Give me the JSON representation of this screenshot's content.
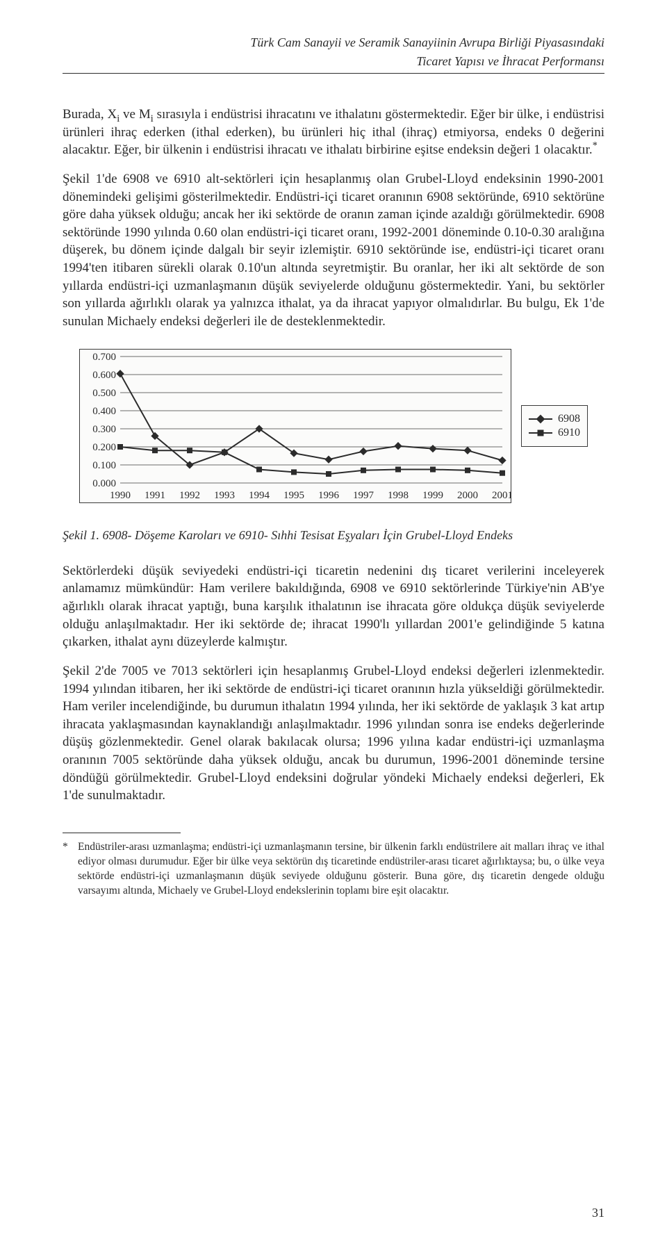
{
  "running_head": {
    "line1": "Türk Cam Sanayii ve Seramik Sanayiinin Avrupa Birliği Piyasasındaki",
    "line2": "Ticaret Yapısı ve İhracat Performansı"
  },
  "paragraphs": {
    "p1_a": "Burada, X",
    "p1_sub1": "i",
    "p1_b": " ve M",
    "p1_sub2": "i",
    "p1_c": " sırasıyla i endüstrisi ihracatını ve ithalatını göstermektedir. Eğer bir ülke, i endüstrisi ürünleri ihraç ederken (ithal ederken), bu ürünleri hiç ithal (ihraç) etmiyorsa, endeks 0 değerini alacaktır. Eğer, bir ülkenin i endüstrisi ihracatı ve ithalatı birbirine eşitse endeksin değeri 1 olacaktır.",
    "p1_sup": "*",
    "p2": "Şekil 1'de 6908 ve 6910 alt-sektörleri için hesaplanmış olan Grubel-Lloyd endeksinin 1990-2001 dönemindeki gelişimi gösterilmektedir. Endüstri-içi ticaret oranının 6908 sektöründe, 6910 sektörüne göre daha yüksek olduğu; ancak her iki sektörde de oranın zaman içinde azaldığı görülmektedir. 6908 sektöründe 1990 yılında 0.60 olan endüstri-içi ticaret oranı, 1992-2001 döneminde 0.10-0.30 aralığına düşerek, bu dönem içinde dalgalı bir seyir izlemiştir. 6910 sektöründe ise, endüstri-içi ticaret oranı 1994'ten itibaren sürekli olarak 0.10'un altında seyretmiştir. Bu oranlar, her iki alt sektörde de son yıllarda endüstri-içi uzmanlaşmanın düşük seviyelerde olduğunu göstermektedir. Yani, bu sektörler son yıllarda ağırlıklı olarak ya yalnızca ithalat, ya da ihracat yapıyor olmalıdırlar. Bu bulgu, Ek 1'de sunulan Michaely endeksi değerleri ile de desteklenmektedir.",
    "p3": "Sektörlerdeki düşük seviyedeki endüstri-içi ticaretin nedenini dış ticaret verilerini inceleyerek anlamamız mümkündür: Ham verilere bakıldığında, 6908 ve 6910 sektörlerinde Türkiye'nin AB'ye ağırlıklı olarak ihracat yaptığı, buna karşılık ithalatının ise ihracata göre oldukça düşük seviyelerde olduğu anlaşılmaktadır. Her iki sektörde de; ihracat 1990'lı yıllardan 2001'e gelindiğinde 5 katına çıkarken, ithalat aynı düzeylerde kalmıştır.",
    "p4": "Şekil 2'de 7005 ve 7013 sektörleri için hesaplanmış Grubel-Lloyd endeksi değerleri izlenmektedir. 1994 yılından itibaren, her iki sektörde de endüstri-içi ticaret oranının hızla yükseldiği görülmektedir. Ham veriler incelendiğinde, bu durumun ithalatın 1994 yılında, her iki sektörde de yaklaşık 3 kat artıp ihracata yaklaşmasından kaynaklandığı anlaşılmaktadır. 1996 yılından sonra ise endeks değerlerinde düşüş gözlenmektedir. Genel olarak bakılacak olursa; 1996 yılına kadar endüstri-içi uzmanlaşma oranının 7005 sektöründe daha yüksek olduğu, ancak bu durumun, 1996-2001 döneminde tersine döndüğü görülmektedir. Grubel-Lloyd endeksini doğrular yöndeki Michaely endeksi değerleri, Ek 1'de sunulmaktadır."
  },
  "caption": "Şekil 1. 6908- Döşeme Karoları ve 6910- Sıhhi Tesisat Eşyaları İçin Grubel-Lloyd Endeks",
  "legend": {
    "s1": "6908",
    "s2": "6910"
  },
  "footnote": {
    "mark": "*",
    "text": "Endüstriler-arası uzmanlaşma; endüstri-içi uzmanlaşmanın tersine, bir ülkenin farklı endüstrilere ait malları ihraç ve ithal ediyor olması durumudur. Eğer bir ülke veya sektörün dış ticaretinde endüstriler-arası ticaret ağırlıktaysa; bu, o ülke veya sektörde endüstri-içi uzmanlaşmanın düşük seviyede olduğunu gösterir. Buna göre, dış ticaretin dengede olduğu varsayımı altında, Michaely ve Grubel-Lloyd endekslerinin toplamı bire eşit olacaktır."
  },
  "page_number": "31",
  "chart": {
    "type": "line",
    "background_color": "#fbfbfa",
    "grid_color": "#6b6b6b",
    "line_color": "#2b2b2b",
    "text_color": "#2b2b2b",
    "label_fontsize": 15,
    "marker_size": 8,
    "line_width": 2,
    "x_labels": [
      "1990",
      "1991",
      "1992",
      "1993",
      "1994",
      "1995",
      "1996",
      "1997",
      "1998",
      "1999",
      "2000",
      "2001"
    ],
    "y_labels": [
      "0.000",
      "0.100",
      "0.200",
      "0.300",
      "0.400",
      "0.500",
      "0.600",
      "0.700"
    ],
    "ylim": [
      0.0,
      0.7
    ],
    "ytick_step": 0.1,
    "series": [
      {
        "name": "6908",
        "marker": "diamond",
        "values": [
          0.605,
          0.26,
          0.1,
          0.17,
          0.3,
          0.165,
          0.13,
          0.175,
          0.205,
          0.19,
          0.18,
          0.125
        ]
      },
      {
        "name": "6910",
        "marker": "square",
        "values": [
          0.2,
          0.18,
          0.18,
          0.17,
          0.075,
          0.06,
          0.05,
          0.07,
          0.075,
          0.075,
          0.07,
          0.055
        ]
      }
    ]
  }
}
